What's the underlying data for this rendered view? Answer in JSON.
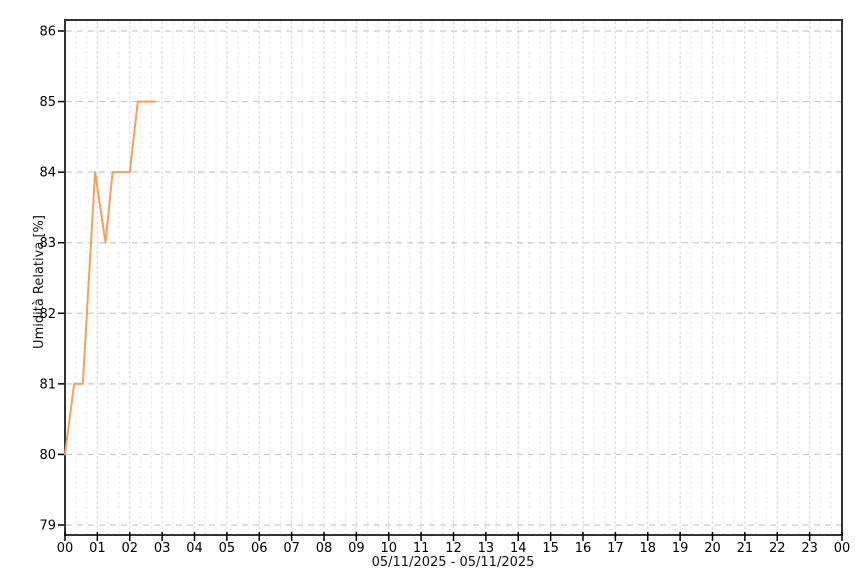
{
  "page": {
    "background_color": "#ffffff"
  },
  "chart_data": {
    "type": "line",
    "title": "",
    "xlabel": "05/11/2025 - 05/11/2025",
    "ylabel": "Umidità Relativa [%]",
    "xlim": [
      0,
      24
    ],
    "ylim": [
      78.85,
      86.15
    ],
    "yticks": [
      79,
      80,
      81,
      82,
      83,
      84,
      85,
      86
    ],
    "xticks": [
      0,
      1,
      2,
      3,
      4,
      5,
      6,
      7,
      8,
      9,
      10,
      11,
      12,
      13,
      14,
      15,
      16,
      17,
      18,
      19,
      20,
      21,
      22,
      23,
      24
    ],
    "xtick_labels": [
      "00",
      "01",
      "02",
      "03",
      "04",
      "05",
      "06",
      "07",
      "08",
      "09",
      "10",
      "11",
      "12",
      "13",
      "14",
      "15",
      "16",
      "17",
      "18",
      "19",
      "20",
      "21",
      "22",
      "23",
      "00"
    ],
    "grid": {
      "major_y_on": true,
      "major_x_on": true,
      "minor_x_on": true,
      "minor_x_per_hour": 3,
      "major_y_color": "#cbcbcb",
      "major_x_color": "#e0e0e0",
      "minor_x_color": "#f0f0f0"
    },
    "axis": {
      "border_color": "#333333",
      "tick_color": "#000000",
      "label_color": "#000000"
    },
    "legend_position": "none",
    "series": [
      {
        "name": "Umidità Relativa",
        "color": "#f4a15e",
        "points": [
          [
            0.0,
            80
          ],
          [
            0.28,
            81
          ],
          [
            0.55,
            81
          ],
          [
            0.93,
            84
          ],
          [
            1.25,
            83
          ],
          [
            1.47,
            84
          ],
          [
            2.0,
            84
          ],
          [
            2.25,
            85
          ],
          [
            2.78,
            85
          ]
        ]
      }
    ]
  }
}
